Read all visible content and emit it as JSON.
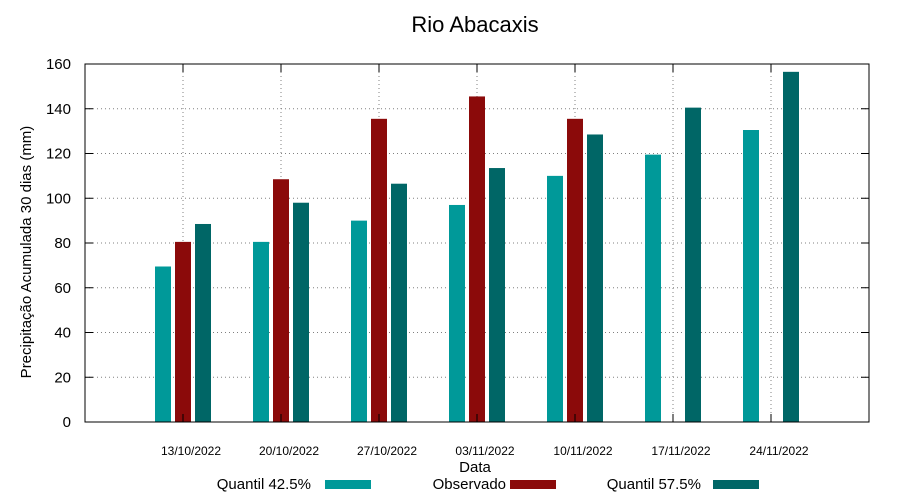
{
  "chart_data": {
    "type": "bar",
    "title": "Rio Abacaxis",
    "xlabel": "Data",
    "ylabel": "Precipitação Acumulada 30 dias (mm)",
    "ylim": [
      0,
      160
    ],
    "yticks": [
      0,
      20,
      40,
      60,
      80,
      100,
      120,
      140,
      160
    ],
    "grid": true,
    "legend_position": "bottom",
    "categories": [
      "13/10/2022",
      "20/10/2022",
      "27/10/2022",
      "03/11/2022",
      "10/11/2022",
      "17/11/2022",
      "24/11/2022"
    ],
    "series": [
      {
        "name": "Quantil 42.5%",
        "color": "#009999",
        "values": [
          69.5,
          80.5,
          90,
          97,
          110,
          119.5,
          130.5
        ]
      },
      {
        "name": "Observado",
        "color": "#8b0a0a",
        "values": [
          80.5,
          108.5,
          135.5,
          145.5,
          135.5,
          null,
          null
        ]
      },
      {
        "name": "Quantil 57.5%",
        "color": "#006666",
        "values": [
          88.5,
          98,
          106.5,
          113.5,
          128.5,
          140.5,
          156.5
        ]
      }
    ]
  }
}
